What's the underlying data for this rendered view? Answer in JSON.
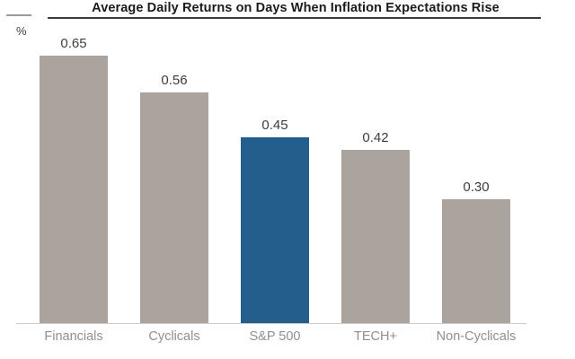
{
  "chart_data": {
    "type": "bar",
    "title": "Average Daily Returns on Days When Inflation Expectations Rise",
    "unit_label": "%",
    "categories": [
      "Financials",
      "Cyclicals",
      "S&P 500",
      "TECH+",
      "Non-Cyclicals"
    ],
    "values": [
      0.65,
      0.56,
      0.45,
      0.42,
      0.3
    ],
    "value_labels": [
      "0.65",
      "0.56",
      "0.45",
      "0.42",
      "0.30"
    ],
    "highlight_category": "S&P 500",
    "highlight_index": 2,
    "colors": {
      "bar": "#aba49e",
      "highlight": "#245e8c",
      "title_text": "#1b1b1b",
      "value_text": "#3d3d3d",
      "category_text": "#8f8f8f",
      "baseline": "#cccccc",
      "title_rule": "#3c3c3c"
    },
    "ylim": [
      0,
      0.72
    ],
    "xlabel": "",
    "ylabel": "%",
    "grid": false,
    "legend": false,
    "value_labels_position": "above bars",
    "y_axis_ticks": "none"
  }
}
